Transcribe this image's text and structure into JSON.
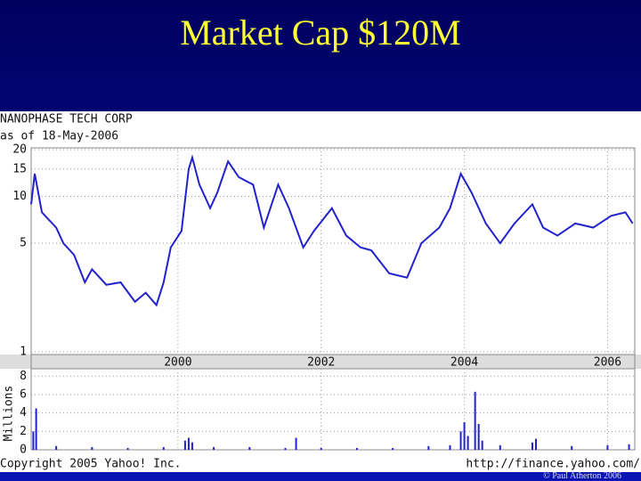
{
  "slide": {
    "title": "Market Cap $120M",
    "footer": "© Paul Atherton 2006"
  },
  "chart_data": [
    {
      "type": "line",
      "title": "NANOPHASE TECH CORP",
      "subtitle": "as of 18-May-2006",
      "x": [
        1997.95,
        1998.0,
        1998.1,
        1998.3,
        1998.4,
        1998.55,
        1998.7,
        1998.8,
        1999.0,
        1999.2,
        1999.4,
        1999.55,
        1999.7,
        1999.8,
        1999.9,
        2000.05,
        2000.15,
        2000.2,
        2000.3,
        2000.45,
        2000.55,
        2000.7,
        2000.85,
        2001.05,
        2001.2,
        2001.4,
        2001.55,
        2001.75,
        2001.9,
        2002.15,
        2002.35,
        2002.55,
        2002.7,
        2002.95,
        2003.2,
        2003.4,
        2003.65,
        2003.8,
        2003.95,
        2004.1,
        2004.3,
        2004.5,
        2004.7,
        2004.95,
        2005.1,
        2005.3,
        2005.55,
        2005.8,
        2006.05,
        2006.25,
        2006.35
      ],
      "values": [
        8.9,
        14,
        7.9,
        6.3,
        5.0,
        4.2,
        2.8,
        3.4,
        2.7,
        2.8,
        2.1,
        2.4,
        2.0,
        2.8,
        4.7,
        6.0,
        15,
        17.8,
        11.9,
        8.4,
        10.6,
        16.8,
        13.3,
        11.9,
        6.3,
        11.9,
        8.4,
        4.7,
        6.0,
        8.4,
        5.6,
        4.7,
        4.5,
        3.2,
        3.0,
        5.0,
        6.3,
        8.4,
        14,
        10.6,
        6.7,
        5.0,
        6.7,
        8.9,
        6.3,
        5.6,
        6.7,
        6.3,
        7.5,
        7.9,
        6.7
      ],
      "color": "#2222cc",
      "log_scale": true,
      "xlim": [
        1997.95,
        2006.38
      ],
      "xticks": [
        2000,
        2002,
        2004,
        2006
      ],
      "ylim": [
        1,
        20
      ],
      "yticks": [
        1,
        5,
        10,
        15,
        20
      ],
      "grid": true
    },
    {
      "type": "bar",
      "y_label": "Millions",
      "annotations": [
        "Copyright 2005 Yahoo! Inc.",
        "http://finance.yahoo.com/"
      ],
      "x": [
        1997.98,
        1998.02,
        1998.3,
        1998.8,
        1999.3,
        1999.8,
        2000.1,
        2000.15,
        2000.2,
        2000.5,
        2001.0,
        2001.5,
        2001.65,
        2002.0,
        2002.5,
        2003.0,
        2003.5,
        2003.8,
        2003.95,
        2004.0,
        2004.05,
        2004.15,
        2004.2,
        2004.25,
        2004.5,
        2004.95,
        2005.0,
        2005.5,
        2006.0,
        2006.3
      ],
      "values": [
        2.0,
        4.5,
        0.4,
        0.3,
        0.2,
        0.3,
        1.0,
        1.3,
        0.8,
        0.3,
        0.3,
        0.2,
        1.3,
        0.2,
        0.2,
        0.2,
        0.4,
        0.5,
        2.0,
        3.0,
        1.5,
        6.3,
        2.8,
        1.0,
        0.5,
        0.8,
        1.2,
        0.4,
        0.5,
        0.6
      ],
      "color": "#2222cc",
      "xlim": [
        1997.95,
        2006.38
      ],
      "ylim": [
        0,
        8.8
      ],
      "yticks": [
        0,
        2,
        4,
        6,
        8
      ],
      "grid": true
    }
  ]
}
